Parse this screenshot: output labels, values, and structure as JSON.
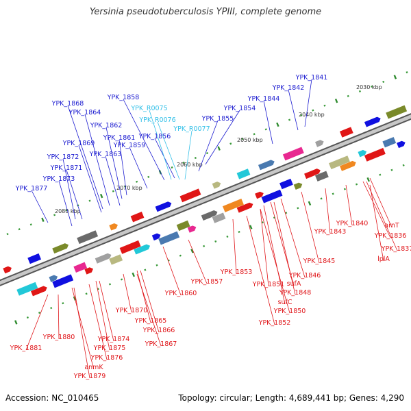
{
  "title": "Yersinia pseudotuberculosis YPIII, complete genome",
  "footer": {
    "accession": "Accession: NC_010465",
    "summary": "Topology: circular; Length: 4,689,441 bp; Genes: 4,290"
  },
  "scale_labels": [
    "2030 kbp",
    "2040 kbp",
    "2050 kbp",
    "2060 kbp",
    "2070 kbp",
    "2080 kbp"
  ],
  "colors": {
    "forward_label": "#1b1bd0",
    "rna_label": "#33c0e8",
    "reverse_label": "#e0161a",
    "axis": "#888888"
  },
  "forward_genes": [
    "YPK_1841",
    "YPK_1842",
    "YPK_1844",
    "YPK_1854",
    "YPK_1855",
    "YPK_1856",
    "YPK_1858",
    "YPK_1859",
    "YPK_1861",
    "YPK_1862",
    "YPK_1863",
    "YPK_1864",
    "YPK_1868",
    "YPK_1869",
    "YPK_1871",
    "YPK_1872",
    "YPK_1873",
    "YPK_1877"
  ],
  "rna_genes": [
    "YPK_R0075",
    "YPK_R0076",
    "YPK_R0077"
  ],
  "reverse_genes": [
    "YPK_1840",
    "YPK_1843",
    "YPK_1845",
    "YPK_1846",
    "YPK_1848",
    "YPK_1850",
    "YPK_1851",
    "YPK_1852",
    "YPK_1853",
    "YPK_1857",
    "YPK_1860",
    "YPK_1865",
    "YPK_1866",
    "YPK_1867",
    "YPK_1870",
    "YPK_1874",
    "YPK_1875",
    "YPK_1876",
    "YPK_1879",
    "YPK_1880",
    "YPK_1881",
    "arnT",
    "YPK_1836",
    "YPK_1837",
    "lplA",
    "sufA",
    "sufC",
    "anmK"
  ]
}
